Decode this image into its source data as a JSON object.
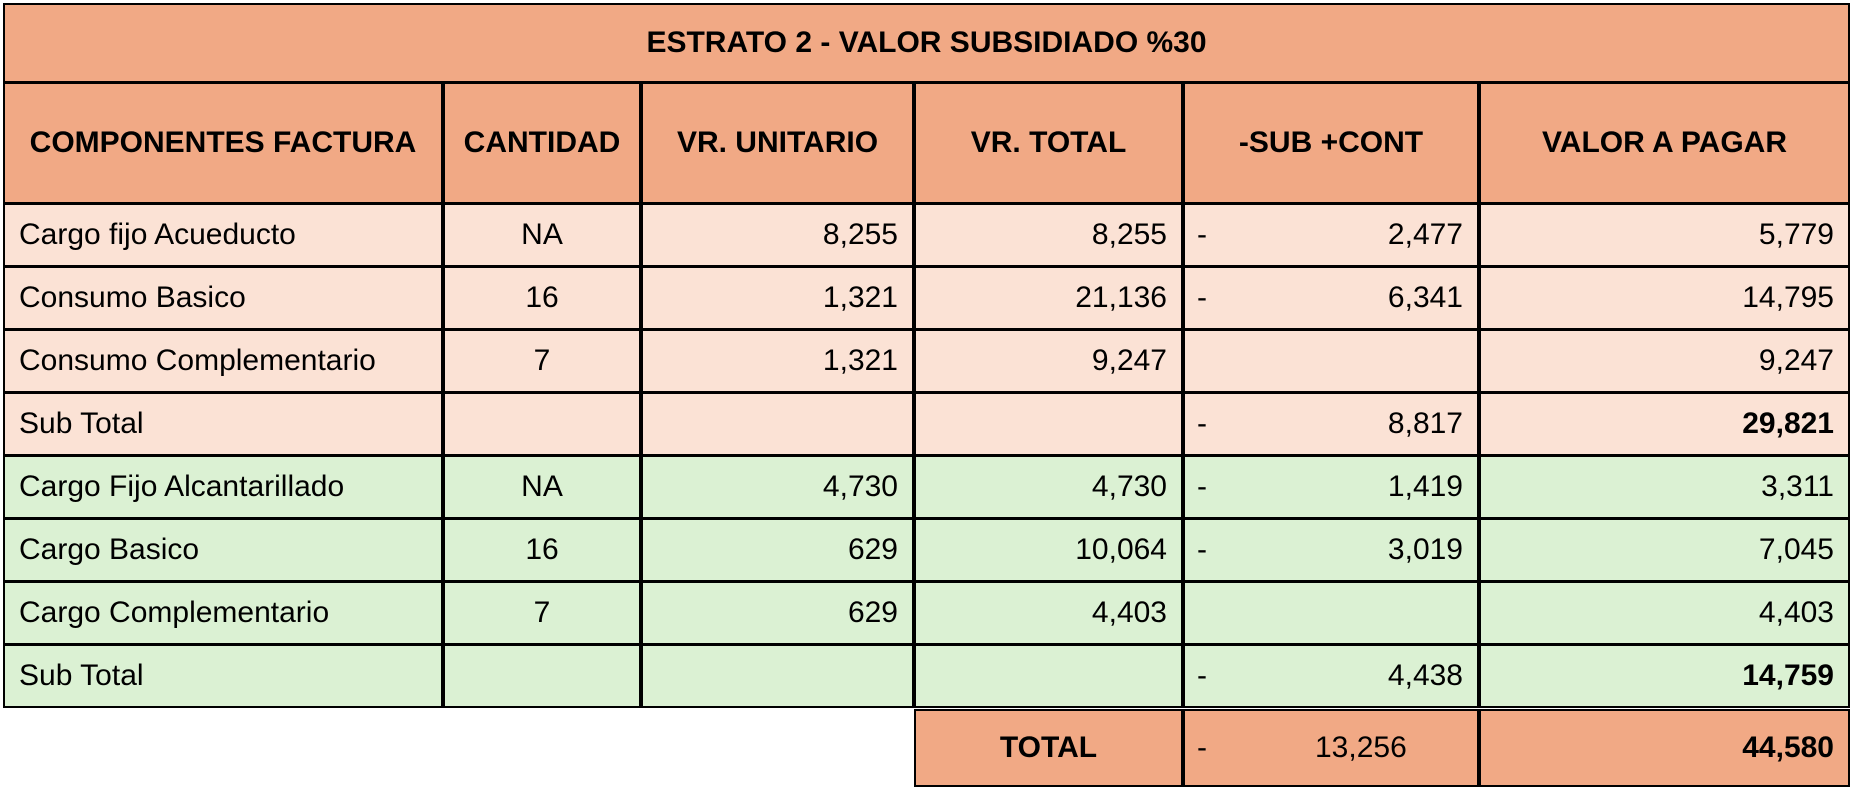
{
  "title": "ESTRATO 2 - VALOR SUBSIDIADO %30",
  "headers": [
    "COMPONENTES FACTURA",
    "CANTIDAD",
    "VR. UNITARIO",
    "VR. TOTAL",
    "-SUB +CONT",
    "VALOR A PAGAR"
  ],
  "sections": [
    {
      "rows": [
        {
          "label": "Cargo fijo Acueducto",
          "cantidad": "NA",
          "unitario": "8,255",
          "total": "8,255",
          "sign": "-",
          "sub": "2,477",
          "pagar": "5,779"
        },
        {
          "label": "Consumo Basico",
          "cantidad": "16",
          "unitario": "1,321",
          "total": "21,136",
          "sign": "-",
          "sub": "6,341",
          "pagar": "14,795"
        },
        {
          "label": "Consumo Complementario",
          "cantidad": "7",
          "unitario": "1,321",
          "total": "9,247",
          "pagar": "9,247"
        },
        {
          "label": "Sub Total",
          "sign": "-",
          "sub": "8,817",
          "pagar": "29,821"
        }
      ]
    },
    {
      "rows": [
        {
          "label": "Cargo Fijo Alcantarillado",
          "cantidad": "NA",
          "unitario": "4,730",
          "total": "4,730",
          "sign": "-",
          "sub": "1,419",
          "pagar": "3,311"
        },
        {
          "label": "Cargo Basico",
          "cantidad": "16",
          "unitario": "629",
          "total": "10,064",
          "sign": "-",
          "sub": "3,019",
          "pagar": "7,045"
        },
        {
          "label": "Cargo Complementario",
          "cantidad": "7",
          "unitario": "629",
          "total": "4,403",
          "pagar": "4,403"
        },
        {
          "label": "Sub Total",
          "sign": "-",
          "sub": "4,438",
          "pagar": "14,759"
        }
      ]
    }
  ],
  "total": {
    "label": "TOTAL",
    "sign": "-",
    "sub": "13,256",
    "pagar": "44,580"
  }
}
